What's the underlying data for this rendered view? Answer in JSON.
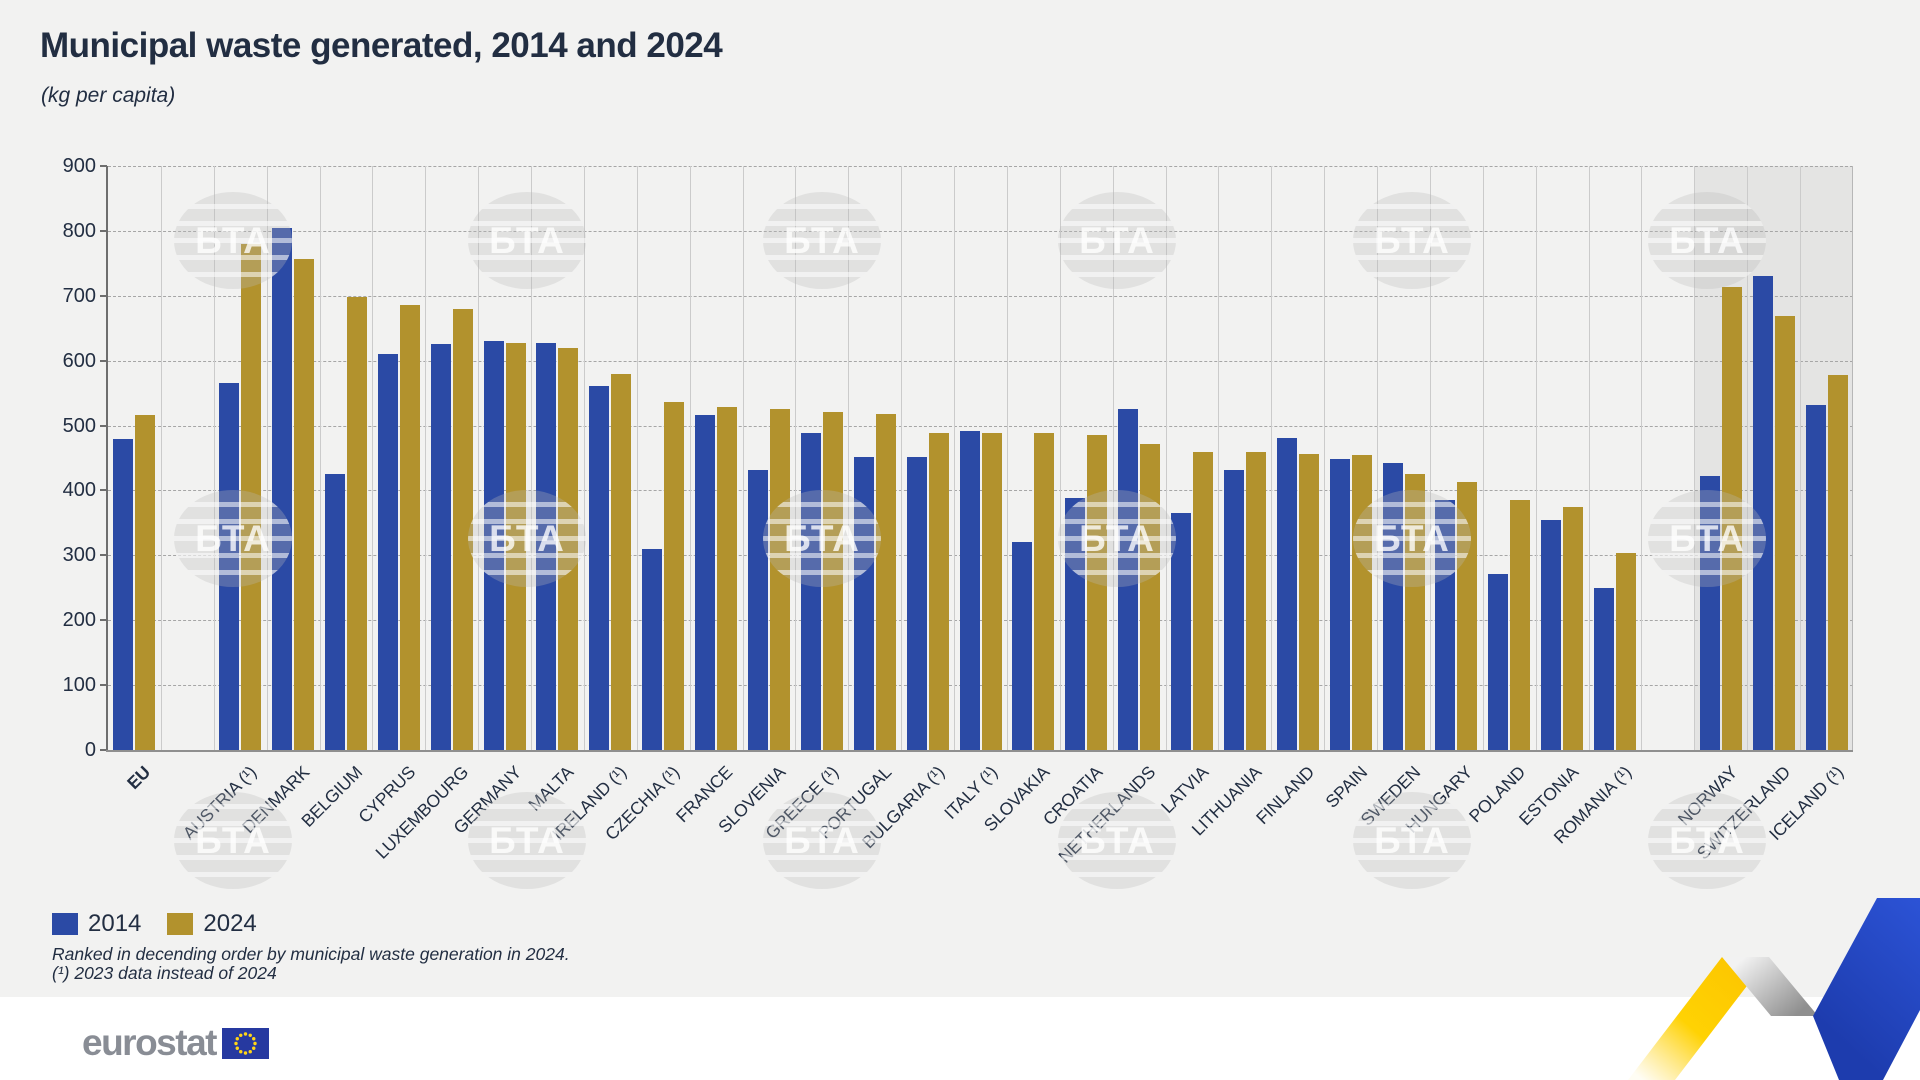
{
  "title": "Municipal waste generated, 2014 and 2024",
  "subtitle": "(kg per capita)",
  "legend": [
    {
      "label": "2014",
      "color": "#2b4aa5"
    },
    {
      "label": "2024",
      "color": "#b2922d"
    }
  ],
  "footnotes": [
    "Ranked in decending order by municipal waste generation in 2024.",
    "(¹) 2023 data instead of 2024"
  ],
  "logo_text": "eurostat",
  "watermark_text": "БТА",
  "colors": {
    "bar_2014": "#2b4aa5",
    "bar_2024": "#b2922d",
    "background": "#f2f2f1",
    "efta_shade": "#e4e4e3",
    "text": "#222e42"
  },
  "chart_data": {
    "type": "bar",
    "title": "Municipal waste generated, 2014 and 2024",
    "ylabel": "kg per capita",
    "xlabel": "",
    "ylim": [
      0,
      900
    ],
    "ytick_step": 100,
    "grid": true,
    "legend_position": "bottom-left",
    "series_names": [
      "2014",
      "2024"
    ],
    "categories": [
      {
        "label": "EU",
        "group": "eu",
        "v2014": 479,
        "v2024": 516,
        "bold": true
      },
      {
        "label": "AUSTRIA (¹)",
        "group": "member",
        "v2014": 565,
        "v2024": 780
      },
      {
        "label": "DENMARK",
        "group": "member",
        "v2014": 804,
        "v2024": 756
      },
      {
        "label": "BELGIUM",
        "group": "member",
        "v2014": 426,
        "v2024": 698
      },
      {
        "label": "CYPRUS",
        "group": "member",
        "v2014": 611,
        "v2024": 686
      },
      {
        "label": "LUXEMBOURG",
        "group": "member",
        "v2014": 625,
        "v2024": 680
      },
      {
        "label": "GERMANY",
        "group": "member",
        "v2014": 630,
        "v2024": 627
      },
      {
        "label": "MALTA",
        "group": "member",
        "v2014": 628,
        "v2024": 620
      },
      {
        "label": "IRELAND (¹)",
        "group": "member",
        "v2014": 561,
        "v2024": 580
      },
      {
        "label": "CZECHIA (¹)",
        "group": "member",
        "v2014": 310,
        "v2024": 537
      },
      {
        "label": "FRANCE",
        "group": "member",
        "v2014": 517,
        "v2024": 529
      },
      {
        "label": "SLOVENIA",
        "group": "member",
        "v2014": 431,
        "v2024": 525
      },
      {
        "label": "GREECE (¹)",
        "group": "member",
        "v2014": 488,
        "v2024": 521
      },
      {
        "label": "PORTUGAL",
        "group": "member",
        "v2014": 451,
        "v2024": 518
      },
      {
        "label": "BULGARIA (¹)",
        "group": "member",
        "v2014": 451,
        "v2024": 489
      },
      {
        "label": "ITALY (¹)",
        "group": "member",
        "v2014": 491,
        "v2024": 488
      },
      {
        "label": "SLOVAKIA",
        "group": "member",
        "v2014": 320,
        "v2024": 488
      },
      {
        "label": "CROATIA",
        "group": "member",
        "v2014": 389,
        "v2024": 485
      },
      {
        "label": "NETHERLANDS",
        "group": "member",
        "v2014": 526,
        "v2024": 472
      },
      {
        "label": "LATVIA",
        "group": "member",
        "v2014": 365,
        "v2024": 460
      },
      {
        "label": "LITHUANIA",
        "group": "member",
        "v2014": 431,
        "v2024": 460
      },
      {
        "label": "FINLAND",
        "group": "member",
        "v2014": 481,
        "v2024": 456
      },
      {
        "label": "SPAIN",
        "group": "member",
        "v2014": 448,
        "v2024": 454
      },
      {
        "label": "SWEDEN",
        "group": "member",
        "v2014": 442,
        "v2024": 426
      },
      {
        "label": "HUNGARY",
        "group": "member",
        "v2014": 385,
        "v2024": 413
      },
      {
        "label": "POLAND",
        "group": "member",
        "v2014": 272,
        "v2024": 386
      },
      {
        "label": "ESTONIA",
        "group": "member",
        "v2014": 355,
        "v2024": 375
      },
      {
        "label": "ROMANIA (¹)",
        "group": "member",
        "v2014": 249,
        "v2024": 304
      },
      {
        "label": "NORWAY",
        "group": "efta",
        "v2014": 423,
        "v2024": 714
      },
      {
        "label": "SWITZERLAND",
        "group": "efta",
        "v2014": 731,
        "v2024": 669
      },
      {
        "label": "ICELAND (¹)",
        "group": "efta",
        "v2014": 532,
        "v2024": 578
      }
    ]
  }
}
